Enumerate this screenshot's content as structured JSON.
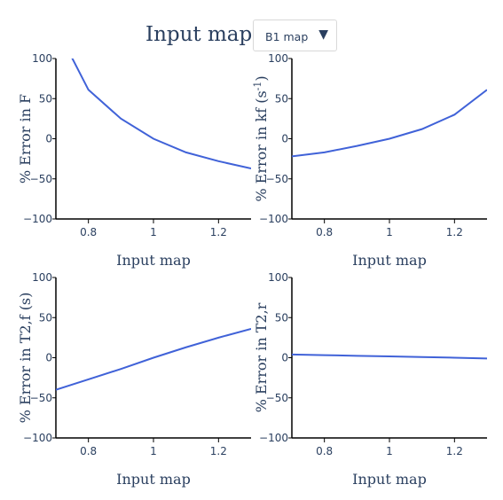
{
  "selector": {
    "label": "Input map:",
    "selected": "B1 map"
  },
  "colors": {
    "line": "#4062d8",
    "axis": "#000000",
    "text": "#2a3f5f"
  },
  "chart_data": [
    {
      "type": "line",
      "xlabel": "Input map",
      "ylabel": "% Error in F",
      "ylabel_sup": "",
      "xlim": [
        0.7,
        1.3
      ],
      "ylim": [
        -100,
        100
      ],
      "xticks": [
        0.8,
        1,
        1.2
      ],
      "xtick_labels": [
        "0.8",
        "1",
        "1.2"
      ],
      "yticks": [
        -100,
        -50,
        0,
        50,
        100
      ],
      "ytick_labels": [
        "−100",
        "−50",
        "0",
        "50",
        "100"
      ],
      "x": [
        0.7,
        0.8,
        0.9,
        1.0,
        1.1,
        1.2,
        1.3
      ],
      "y": [
        140,
        61,
        25,
        0,
        -17,
        -28,
        -37
      ]
    },
    {
      "type": "line",
      "xlabel": "Input map",
      "ylabel": "% Error in kf (s",
      "ylabel_sup": "-1",
      "ylabel_suffix": ")",
      "xlim": [
        0.7,
        1.3
      ],
      "ylim": [
        -100,
        100
      ],
      "xticks": [
        0.8,
        1,
        1.2
      ],
      "xtick_labels": [
        "0.8",
        "1",
        "1.2"
      ],
      "yticks": [
        -100,
        -50,
        0,
        50,
        100
      ],
      "ytick_labels": [
        "−100",
        "−50",
        "0",
        "50",
        "100"
      ],
      "x": [
        0.7,
        0.8,
        0.9,
        1.0,
        1.1,
        1.2,
        1.3
      ],
      "y": [
        -22,
        -17,
        -9,
        0,
        12,
        30,
        61
      ]
    },
    {
      "type": "line",
      "xlabel": "Input map",
      "ylabel": "% Error in T2,f (s)",
      "ylabel_sup": "",
      "xlim": [
        0.7,
        1.3
      ],
      "ylim": [
        -100,
        100
      ],
      "xticks": [
        0.8,
        1,
        1.2
      ],
      "xtick_labels": [
        "0.8",
        "1",
        "1.2"
      ],
      "yticks": [
        -100,
        -50,
        0,
        50,
        100
      ],
      "ytick_labels": [
        "−100",
        "−50",
        "0",
        "50",
        "100"
      ],
      "x": [
        0.7,
        0.8,
        0.9,
        1.0,
        1.1,
        1.2,
        1.3
      ],
      "y": [
        -40,
        -27,
        -14,
        0,
        13,
        25,
        36
      ]
    },
    {
      "type": "line",
      "xlabel": "Input map",
      "ylabel": "% Error in T2,r",
      "ylabel_sup": "",
      "xlim": [
        0.7,
        1.3
      ],
      "ylim": [
        -100,
        100
      ],
      "xticks": [
        0.8,
        1,
        1.2
      ],
      "xtick_labels": [
        "0.8",
        "1",
        "1.2"
      ],
      "yticks": [
        -100,
        -50,
        0,
        50,
        100
      ],
      "ytick_labels": [
        "−100",
        "−50",
        "0",
        "50",
        "100"
      ],
      "x": [
        0.7,
        0.8,
        0.9,
        1.0,
        1.1,
        1.2,
        1.3
      ],
      "y": [
        4,
        3.2,
        2.4,
        1.6,
        0.8,
        0,
        -1
      ]
    }
  ]
}
